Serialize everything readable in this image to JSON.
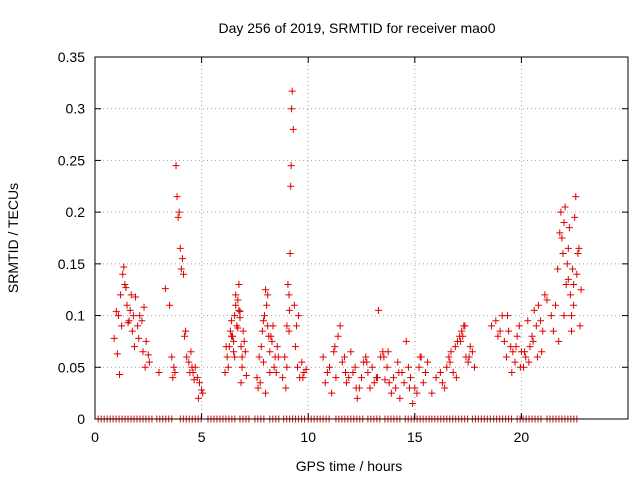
{
  "chart_data": {
    "type": "scatter",
    "title": "Day 256 of 2019, SRMTID for receiver mao0",
    "xlabel": "GPS time / hours",
    "ylabel": "SRMTID / TECUs",
    "xlim": [
      0,
      25
    ],
    "ylim": [
      0,
      0.35
    ],
    "xticks": [
      0,
      5,
      10,
      15,
      20
    ],
    "yticks": [
      0,
      0.05,
      0.1,
      0.15,
      0.2,
      0.25,
      0.3,
      0.35
    ],
    "xtick_labels": [
      "0",
      "5",
      "10",
      "15",
      "20"
    ],
    "ytick_labels": [
      "0",
      "0.05",
      "0.1",
      "0.15",
      "0.2",
      "0.25",
      "0.3",
      "0.35"
    ],
    "grid": true,
    "marker": "+",
    "color": "#e00000",
    "series": [
      {
        "name": "SRMTID",
        "x": [
          0.9,
          1.0,
          1.1,
          1.2,
          1.3,
          1.35,
          1.4,
          1.45,
          1.5,
          1.6,
          1.7,
          1.8,
          1.9,
          2.0,
          2.1,
          2.2,
          2.3,
          2.4,
          2.5,
          1.05,
          1.15,
          1.25,
          1.55,
          1.75,
          2.05,
          2.35,
          2.55,
          1.85,
          1.65,
          2.25,
          3.0,
          3.3,
          3.5,
          3.6,
          3.7,
          3.75,
          3.8,
          3.85,
          3.9,
          3.95,
          4.0,
          4.05,
          4.1,
          4.15,
          4.2,
          4.3,
          4.4,
          4.5,
          4.6,
          4.7,
          4.8,
          4.9,
          5.0,
          5.05,
          4.25,
          4.45,
          4.65,
          4.85,
          3.65,
          4.55,
          6.1,
          6.2,
          6.3,
          6.35,
          6.4,
          6.45,
          6.5,
          6.55,
          6.6,
          6.65,
          6.7,
          6.75,
          6.8,
          6.85,
          6.9,
          6.95,
          7.0,
          7.1,
          6.25,
          6.5,
          6.6,
          6.7,
          6.8,
          6.9,
          7.05,
          6.15,
          6.4,
          6.55,
          6.75,
          6.85,
          7.6,
          7.7,
          7.8,
          7.85,
          7.9,
          7.95,
          8.0,
          8.05,
          8.1,
          8.15,
          8.2,
          8.3,
          8.4,
          8.5,
          8.6,
          7.75,
          7.9,
          8.0,
          8.1,
          8.25,
          8.35,
          8.45,
          7.65,
          8.2,
          8.55,
          8.8,
          8.9,
          9.0,
          9.05,
          9.1,
          9.12,
          9.15,
          9.18,
          9.2,
          9.22,
          9.25,
          9.3,
          9.4,
          9.5,
          9.6,
          9.7,
          9.8,
          9.9,
          9.35,
          9.45,
          9.55,
          9.0,
          8.95,
          9.75,
          9.1,
          10.7,
          10.8,
          10.9,
          11.0,
          11.1,
          11.2,
          11.3,
          11.4,
          11.5,
          11.6,
          11.7,
          11.8,
          11.9,
          12.0,
          12.1,
          12.2,
          12.3,
          12.4,
          12.5,
          12.6,
          12.7,
          12.8,
          12.9,
          13.0,
          13.1,
          13.2,
          13.3,
          13.4,
          13.5,
          13.6,
          13.7,
          13.8,
          13.9,
          14.0,
          14.1,
          14.2,
          14.3,
          14.4,
          14.5,
          14.6,
          14.7,
          14.8,
          14.9,
          15.0,
          15.1,
          15.2,
          15.3,
          15.4,
          15.5,
          15.6,
          11.25,
          11.75,
          12.25,
          12.75,
          13.25,
          13.55,
          13.75,
          14.25,
          14.75,
          15.25,
          15.8,
          16.0,
          16.2,
          16.4,
          16.5,
          16.6,
          16.7,
          16.8,
          16.9,
          17.0,
          17.1,
          17.2,
          17.3,
          17.4,
          17.5,
          17.6,
          17.7,
          17.8,
          16.3,
          16.65,
          16.95,
          17.25,
          17.35,
          17.55,
          17.15,
          18.6,
          18.8,
          18.9,
          19.0,
          19.1,
          19.2,
          19.3,
          19.4,
          19.5,
          19.6,
          19.7,
          19.8,
          19.9,
          20.0,
          20.1,
          20.2,
          20.3,
          20.4,
          20.5,
          20.6,
          20.7,
          20.8,
          20.9,
          21.0,
          21.1,
          21.2,
          19.35,
          19.55,
          19.75,
          19.95,
          20.15,
          20.35,
          20.55,
          20.75,
          20.95,
          21.4,
          21.5,
          21.6,
          21.7,
          21.8,
          21.85,
          21.9,
          21.95,
          22.0,
          22.05,
          22.1,
          22.15,
          22.2,
          22.25,
          22.3,
          22.35,
          22.4,
          22.45,
          22.5,
          22.55,
          22.6,
          22.7,
          22.8,
          21.75,
          22.0,
          22.2,
          22.35,
          22.45,
          22.65,
          22.75
        ],
        "y": [
          0.078,
          0.104,
          0.1,
          0.12,
          0.14,
          0.147,
          0.13,
          0.127,
          0.11,
          0.095,
          0.12,
          0.1,
          0.118,
          0.09,
          0.1,
          0.095,
          0.108,
          0.075,
          0.062,
          0.063,
          0.043,
          0.09,
          0.093,
          0.085,
          0.078,
          0.05,
          0.055,
          0.07,
          0.105,
          0.065,
          0.045,
          0.126,
          0.11,
          0.06,
          0.05,
          0.045,
          0.245,
          0.215,
          0.195,
          0.2,
          0.165,
          0.145,
          0.155,
          0.14,
          0.08,
          0.06,
          0.055,
          0.065,
          0.045,
          0.05,
          0.04,
          0.035,
          0.028,
          0.025,
          0.085,
          0.045,
          0.038,
          0.02,
          0.04,
          0.05,
          0.045,
          0.06,
          0.07,
          0.085,
          0.095,
          0.08,
          0.075,
          0.1,
          0.11,
          0.09,
          0.115,
          0.13,
          0.098,
          0.07,
          0.06,
          0.085,
          0.075,
          0.042,
          0.05,
          0.065,
          0.12,
          0.088,
          0.104,
          0.05,
          0.065,
          0.07,
          0.08,
          0.06,
          0.105,
          0.035,
          0.04,
          0.06,
          0.07,
          0.085,
          0.095,
          0.1,
          0.125,
          0.11,
          0.09,
          0.08,
          0.065,
          0.075,
          0.05,
          0.045,
          0.06,
          0.035,
          0.055,
          0.025,
          0.12,
          0.08,
          0.09,
          0.06,
          0.03,
          0.045,
          0.07,
          0.04,
          0.06,
          0.09,
          0.13,
          0.12,
          0.105,
          0.16,
          0.225,
          0.245,
          0.3,
          0.317,
          0.28,
          0.07,
          0.05,
          0.04,
          0.055,
          0.045,
          0.048,
          0.11,
          0.09,
          0.1,
          0.05,
          0.03,
          0.04,
          0.085,
          0.06,
          0.035,
          0.045,
          0.05,
          0.025,
          0.065,
          0.04,
          0.08,
          0.09,
          0.055,
          0.06,
          0.035,
          0.04,
          0.065,
          0.045,
          0.05,
          0.02,
          0.03,
          0.04,
          0.055,
          0.06,
          0.045,
          0.03,
          0.05,
          0.035,
          0.04,
          0.105,
          0.06,
          0.065,
          0.038,
          0.05,
          0.035,
          0.025,
          0.04,
          0.03,
          0.055,
          0.02,
          0.045,
          0.035,
          0.075,
          0.05,
          0.04,
          0.015,
          0.03,
          0.025,
          0.05,
          0.06,
          0.035,
          0.045,
          0.055,
          0.07,
          0.045,
          0.03,
          0.055,
          0.04,
          0.06,
          0.065,
          0.045,
          0.03,
          0.06,
          0.025,
          0.04,
          0.045,
          0.03,
          0.05,
          0.06,
          0.065,
          0.045,
          0.07,
          0.075,
          0.08,
          0.085,
          0.09,
          0.06,
          0.055,
          0.07,
          0.065,
          0.05,
          0.035,
          0.055,
          0.04,
          0.08,
          0.09,
          0.06,
          0.075,
          0.09,
          0.095,
          0.08,
          0.085,
          0.1,
          0.075,
          0.06,
          0.085,
          0.07,
          0.065,
          0.055,
          0.08,
          0.09,
          0.065,
          0.05,
          0.06,
          0.095,
          0.07,
          0.08,
          0.105,
          0.09,
          0.11,
          0.095,
          0.085,
          0.12,
          0.115,
          0.1,
          0.045,
          0.07,
          0.05,
          0.065,
          0.055,
          0.075,
          0.06,
          0.065,
          0.1,
          0.085,
          0.11,
          0.145,
          0.18,
          0.2,
          0.175,
          0.16,
          0.19,
          0.205,
          0.13,
          0.15,
          0.165,
          0.185,
          0.12,
          0.1,
          0.145,
          0.13,
          0.195,
          0.215,
          0.14,
          0.165,
          0.125,
          0.075,
          0.1,
          0.135,
          0.085,
          0.11,
          0.16,
          0.09
        ]
      }
    ],
    "zero_band": {
      "y": 0,
      "segments": [
        [
          0.15,
          2.7
        ],
        [
          2.9,
          3.6
        ],
        [
          4.0,
          5.05
        ],
        [
          5.3,
          6.6
        ],
        [
          6.8,
          7.3
        ],
        [
          7.5,
          8.0
        ],
        [
          8.2,
          8.7
        ],
        [
          8.85,
          9.9
        ],
        [
          10.0,
          11.1
        ],
        [
          11.3,
          12.6
        ],
        [
          12.8,
          13.4
        ],
        [
          13.6,
          14.4
        ],
        [
          14.55,
          15.7
        ],
        [
          15.8,
          17.5
        ],
        [
          17.7,
          18.6
        ],
        [
          18.7,
          19.6
        ],
        [
          19.8,
          21.0
        ],
        [
          21.2,
          22.7
        ]
      ],
      "step": 0.14
    }
  }
}
